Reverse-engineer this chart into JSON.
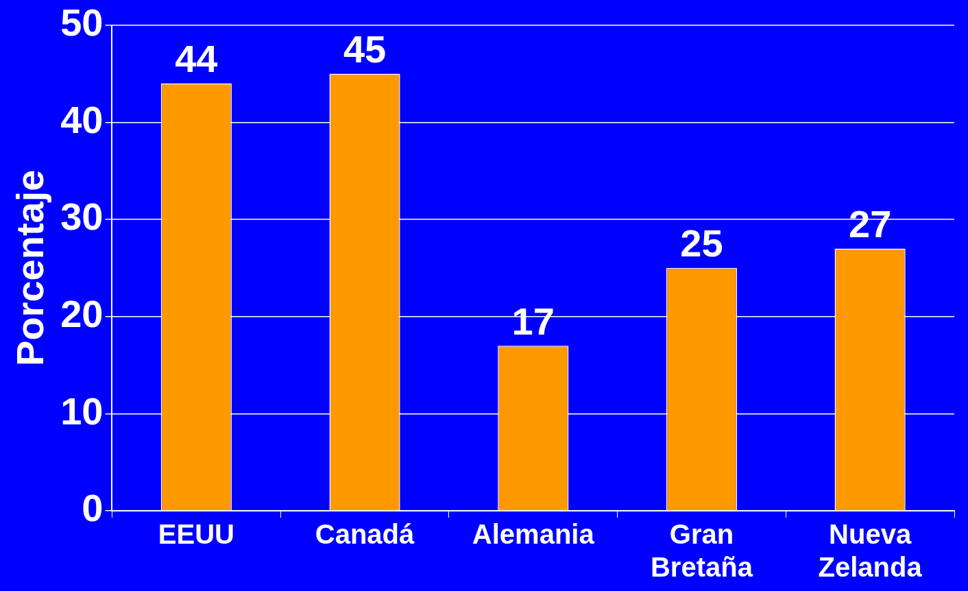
{
  "chart_data": {
    "type": "bar",
    "ylabel": "Porcentaje",
    "categories": [
      "EEUU",
      "Canadá",
      "Alemania",
      "Gran Bretaña",
      "Nueva Zelanda"
    ],
    "values": [
      44,
      45,
      17,
      25,
      27
    ],
    "color": "#ff9900",
    "ylim": [
      0,
      50
    ],
    "yticks": [
      0,
      10,
      20,
      30,
      40,
      50
    ],
    "grid": "y",
    "data_labels": true
  }
}
